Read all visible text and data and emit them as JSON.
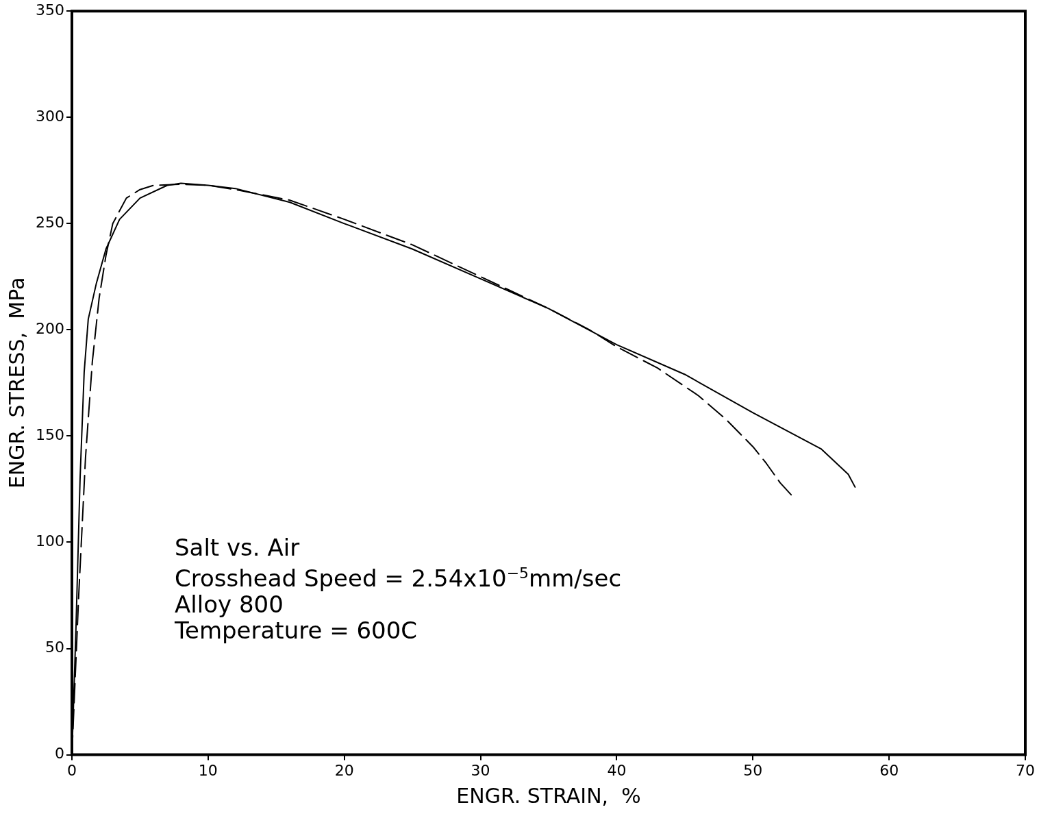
{
  "chart_data": {
    "type": "line",
    "xlabel": "ENGR. STRAIN,  %",
    "ylabel": "ENGR. STRESS,  MPa",
    "xlim": [
      0,
      70
    ],
    "xticks": [
      0,
      10,
      20,
      30,
      40,
      50,
      60,
      70
    ],
    "ylim": [
      0,
      350
    ],
    "yticks": [
      0,
      50,
      100,
      150,
      200,
      250,
      300,
      350
    ],
    "grid": false,
    "legend": false,
    "marker": "none",
    "annotations": [
      "Salt vs. Air",
      "Crosshead Speed = 2.54x10$^{−5}$mm/sec",
      "Alloy 800",
      "Temperature = 600C"
    ],
    "series": [
      {
        "color": "#000000",
        "line_style": "solid",
        "x": [
          0,
          0.3,
          0.6,
          0.9,
          1.2,
          1.8,
          2.5,
          3.5,
          5,
          7,
          8,
          10,
          12,
          16,
          20,
          25,
          30,
          35,
          40,
          45,
          50,
          55,
          57,
          57.5
        ],
        "values": [
          0,
          60,
          130,
          180,
          205,
          222,
          238,
          252,
          262,
          268,
          269,
          268,
          266.5,
          260,
          250,
          238,
          224,
          210,
          193,
          179,
          161,
          144,
          132,
          126
        ]
      },
      {
        "color": "#000000",
        "line_style": "dashed",
        "x": [
          0,
          0.5,
          1,
          1.5,
          2,
          2.5,
          3,
          4,
          5,
          6,
          8,
          10,
          12,
          16,
          20,
          25,
          30,
          35,
          38,
          40,
          43,
          46,
          48,
          50,
          51,
          52,
          53
        ],
        "values": [
          0,
          75,
          140,
          185,
          215,
          235,
          250,
          262,
          266,
          268,
          268.5,
          268,
          266,
          261,
          252,
          240,
          225,
          210,
          200,
          192,
          182,
          169,
          158,
          145,
          137,
          128,
          121
        ]
      }
    ]
  }
}
